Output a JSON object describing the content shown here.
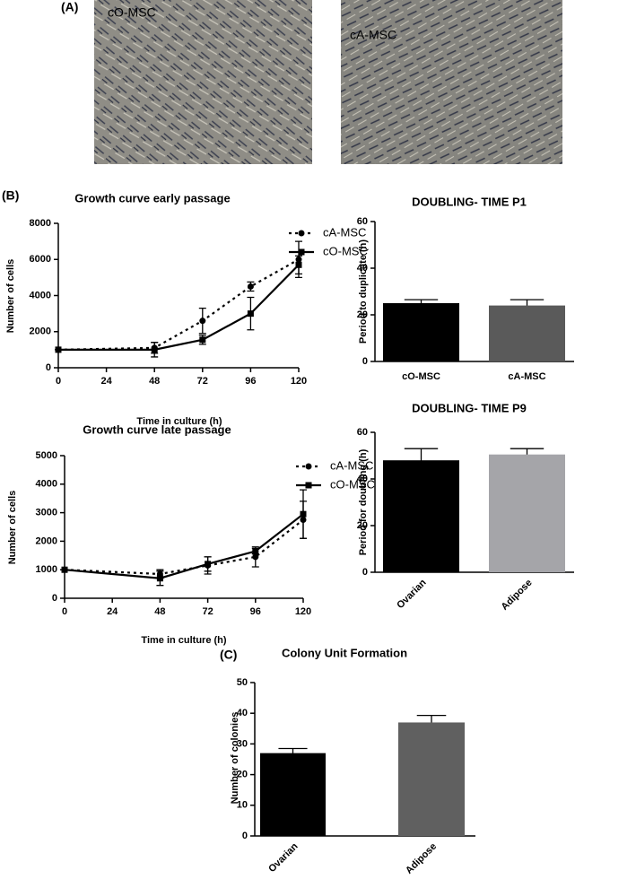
{
  "panel_labels": [
    "(A)",
    "(B)",
    "(C)"
  ],
  "images": [
    {
      "label": "cO-MSC"
    },
    {
      "label": "cA-MSC"
    }
  ],
  "chart_data": [
    {
      "type": "line",
      "title": "Growth curve early passage",
      "xlabel": "Time in culture (h)",
      "ylabel": "Number of cells",
      "x": [
        0,
        48,
        72,
        96,
        120
      ],
      "xlim": [
        0,
        120
      ],
      "xticks": [
        0,
        24,
        48,
        72,
        96,
        120
      ],
      "ylim": [
        0,
        8000
      ],
      "yticks": [
        0,
        2000,
        4000,
        6000,
        8000
      ],
      "series": [
        {
          "name": "cA-MSC",
          "color": "#000000",
          "line_style": "dashed",
          "marker": "circle",
          "values": [
            1000,
            1100,
            2600,
            4500,
            6000
          ],
          "errors": [
            0,
            300,
            700,
            250,
            1000
          ]
        },
        {
          "name": "cO-MSC",
          "color": "#000000",
          "line_style": "solid",
          "marker": "square",
          "values": [
            1000,
            1000,
            1550,
            3000,
            5700
          ],
          "errors": [
            0,
            400,
            250,
            900,
            500
          ]
        }
      ]
    },
    {
      "type": "bar",
      "title": "DOUBLING- TIME P1",
      "ylabel": "Period to duplicate (h)",
      "categories": [
        "cO-MSC",
        "cA-MSC"
      ],
      "values": [
        25,
        24
      ],
      "errors": [
        1.5,
        2.5
      ],
      "colors": [
        "#000000",
        "#5a5a5a"
      ],
      "ylim": [
        0,
        60
      ],
      "yticks": [
        0,
        20,
        40,
        60
      ],
      "xtick_rotation": 0
    },
    {
      "type": "line",
      "title": "Growth curve late passage",
      "xlabel": "Time in culture (h)",
      "ylabel": "Number of cells",
      "x": [
        0,
        48,
        72,
        96,
        120
      ],
      "xlim": [
        0,
        120
      ],
      "xticks": [
        0,
        24,
        48,
        72,
        96,
        120
      ],
      "ylim": [
        0,
        5000
      ],
      "yticks": [
        0,
        1000,
        2000,
        3000,
        4000,
        5000
      ],
      "series": [
        {
          "name": "cA-MSC",
          "color": "#000000",
          "line_style": "dashed",
          "marker": "circle",
          "values": [
            1000,
            850,
            1150,
            1450,
            2750
          ],
          "errors": [
            0,
            150,
            300,
            350,
            650
          ]
        },
        {
          "name": "cO-MSC",
          "color": "#000000",
          "line_style": "solid",
          "marker": "square",
          "values": [
            1000,
            700,
            1200,
            1650,
            2950
          ],
          "errors": [
            0,
            250,
            250,
            100,
            850
          ]
        }
      ]
    },
    {
      "type": "bar",
      "title": "DOUBLING- TIME P9",
      "ylabel": "Period for doubling (h)",
      "categories": [
        "Ovarian",
        "Adipose"
      ],
      "values": [
        48,
        50.5
      ],
      "errors": [
        5,
        2.5
      ],
      "colors": [
        "#000000",
        "#a5a5a9"
      ],
      "ylim": [
        0,
        60
      ],
      "yticks": [
        0,
        20,
        40,
        60
      ],
      "xtick_rotation": -45
    },
    {
      "type": "bar",
      "title": "Colony Unit Formation",
      "ylabel": "Number of colonies",
      "categories": [
        "Ovarian",
        "Adipose"
      ],
      "values": [
        27,
        37
      ],
      "errors": [
        1.5,
        2.3
      ],
      "colors": [
        "#000000",
        "#606060"
      ],
      "ylim": [
        0,
        50
      ],
      "yticks": [
        0,
        10,
        20,
        30,
        40,
        50
      ],
      "xtick_rotation": -45
    }
  ]
}
